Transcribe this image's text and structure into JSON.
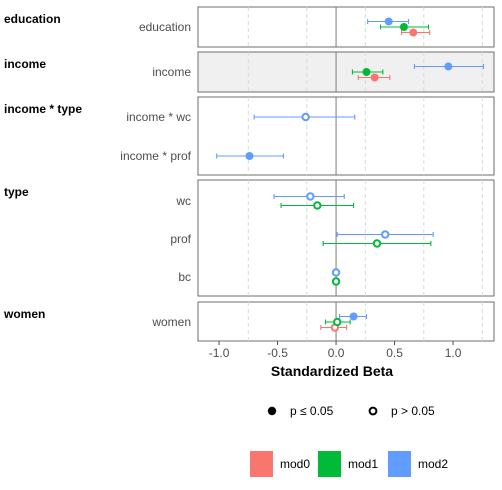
{
  "chart_data": {
    "type": "forest",
    "xlabel": "Standardized Beta",
    "xlim": [
      -1.18,
      1.35
    ],
    "xticks": [
      -1.0,
      -0.5,
      0.0,
      0.5,
      1.0
    ],
    "xtick_labels": [
      "-1.0",
      "-0.5",
      "0.0",
      "0.5",
      "1.0"
    ],
    "grid": "vertical dashed at ±0.25, ±0.75, ±1.25",
    "series": [
      {
        "name": "mod0",
        "color": "#F8766D"
      },
      {
        "name": "mod1",
        "color": "#00BA38"
      },
      {
        "name": "mod2",
        "color": "#619CFF"
      }
    ],
    "significance_legend": {
      "sig_label": "p ≤ 0.05",
      "nonsig_label": "p > 0.05"
    },
    "panels": [
      {
        "label": "education",
        "shaded": false,
        "terms": [
          {
            "label": "education",
            "estimates": [
              {
                "model": "mod0",
                "est": 0.66,
                "lo": 0.56,
                "hi": 0.8,
                "sig": true
              },
              {
                "model": "mod1",
                "est": 0.58,
                "lo": 0.38,
                "hi": 0.79,
                "sig": true
              },
              {
                "model": "mod2",
                "est": 0.45,
                "lo": 0.27,
                "hi": 0.62,
                "sig": true
              }
            ]
          }
        ]
      },
      {
        "label": "income",
        "shaded": true,
        "terms": [
          {
            "label": "income",
            "estimates": [
              {
                "model": "mod0",
                "est": 0.33,
                "lo": 0.19,
                "hi": 0.46,
                "sig": true
              },
              {
                "model": "mod1",
                "est": 0.26,
                "lo": 0.14,
                "hi": 0.4,
                "sig": true
              },
              {
                "model": "mod2",
                "est": 0.96,
                "lo": 0.67,
                "hi": 1.26,
                "sig": true
              }
            ]
          }
        ]
      },
      {
        "label": "income * type",
        "shaded": false,
        "terms": [
          {
            "label": "income * wc",
            "estimates": [
              {
                "model": "mod2",
                "est": -0.26,
                "lo": -0.7,
                "hi": 0.16,
                "sig": false
              }
            ]
          },
          {
            "label": "income * prof",
            "estimates": [
              {
                "model": "mod2",
                "est": -0.74,
                "lo": -1.02,
                "hi": -0.45,
                "sig": true
              }
            ]
          }
        ]
      },
      {
        "label": "type",
        "shaded": false,
        "terms": [
          {
            "label": "wc",
            "estimates": [
              {
                "model": "mod1",
                "est": -0.16,
                "lo": -0.47,
                "hi": 0.15,
                "sig": false
              },
              {
                "model": "mod2",
                "est": -0.22,
                "lo": -0.53,
                "hi": 0.07,
                "sig": false
              }
            ]
          },
          {
            "label": "prof",
            "estimates": [
              {
                "model": "mod1",
                "est": 0.35,
                "lo": -0.11,
                "hi": 0.81,
                "sig": false
              },
              {
                "model": "mod2",
                "est": 0.42,
                "lo": 0.01,
                "hi": 0.83,
                "sig": false
              }
            ]
          },
          {
            "label": "bc",
            "estimates": [
              {
                "model": "mod1",
                "est": 0.0,
                "lo": 0.0,
                "hi": 0.0,
                "sig": false
              },
              {
                "model": "mod2",
                "est": 0.0,
                "lo": 0.0,
                "hi": 0.0,
                "sig": false
              }
            ]
          }
        ]
      },
      {
        "label": "women",
        "shaded": false,
        "terms": [
          {
            "label": "women",
            "estimates": [
              {
                "model": "mod0",
                "est": -0.01,
                "lo": -0.13,
                "hi": 0.09,
                "sig": false
              },
              {
                "model": "mod1",
                "est": 0.01,
                "lo": -0.09,
                "hi": 0.12,
                "sig": false
              },
              {
                "model": "mod2",
                "est": 0.15,
                "lo": 0.03,
                "hi": 0.26,
                "sig": true
              }
            ]
          }
        ]
      }
    ]
  }
}
